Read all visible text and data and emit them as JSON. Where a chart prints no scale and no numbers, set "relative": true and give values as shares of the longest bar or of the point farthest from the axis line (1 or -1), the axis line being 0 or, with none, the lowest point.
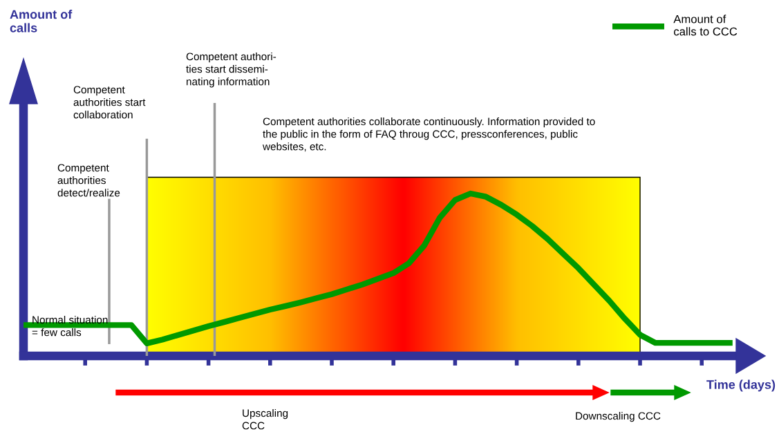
{
  "chart_data": {
    "type": "line",
    "relative": true,
    "xlabel": "Time (days)",
    "categories": [
      null,
      null,
      null,
      null,
      null,
      null,
      null,
      null,
      null,
      null,
      null,
      null,
      null,
      null,
      null,
      null,
      null,
      null,
      null,
      null,
      null,
      null,
      null,
      null,
      null,
      null,
      null,
      null,
      null,
      null,
      null,
      null,
      null,
      null,
      null,
      null,
      null,
      null,
      null,
      null,
      null,
      null,
      null,
      null,
      null,
      null,
      null
    ],
    "series": [
      {
        "name": "Amount of\ncalls to CCC",
        "color": "#009900",
        "values": [
          0.19,
          0.19,
          0.19,
          0.19,
          0.19,
          0.19,
          0.19,
          0.19,
          0.077,
          0.1,
          0.128,
          0.155,
          0.183,
          0.208,
          0.234,
          0.26,
          0.285,
          0.307,
          0.33,
          0.355,
          0.38,
          0.41,
          0.44,
          0.475,
          0.51,
          0.57,
          0.68,
          0.85,
          0.96,
          1.0,
          0.98,
          0.93,
          0.87,
          0.8,
          0.72,
          0.63,
          0.54,
          0.44,
          0.34,
          0.23,
          0.13,
          0.08,
          0.08,
          0.08,
          0.08,
          0.08,
          0.08
        ]
      }
    ],
    "legend": "top right",
    "grid": false,
    "marker": "none",
    "line_style": "solid",
    "annotations": [
      "Normal situation\n= few calls",
      "Competent\nauthorities\ndetect/realize",
      "Competent\nauthorities start\ncollaboration",
      "Competent authori-\nties start dissemi-\nnating information",
      "Competent authorities collaborate continuously. Information provided to\nthe public in the form of FAQ throug CCC, pressconferences, public\nwebsites, etc.",
      "Upscaling\nCCC",
      "Downscaling CCC",
      "Amount of\ncalls"
    ]
  }
}
